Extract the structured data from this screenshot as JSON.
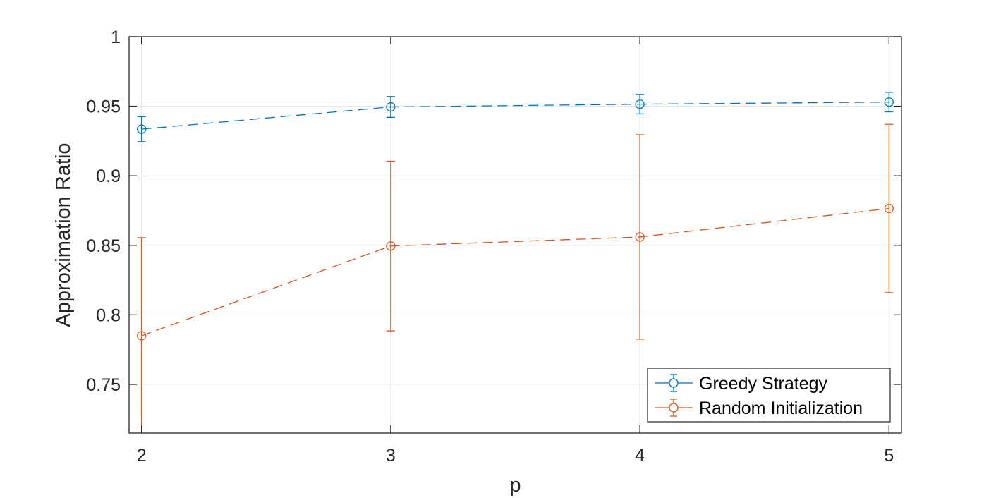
{
  "chart_data": {
    "type": "line",
    "title": "",
    "xlabel": "p",
    "ylabel": "Approximation Ratio",
    "x": [
      2,
      3,
      4,
      5
    ],
    "xlim": [
      1.95,
      5.05
    ],
    "ylim": [
      0.715,
      1.0
    ],
    "xticks": [
      "2",
      "3",
      "4",
      "5"
    ],
    "yticks": [
      "0.75",
      "0.8",
      "0.85",
      "0.9",
      "0.95",
      "1"
    ],
    "grid": true,
    "legend_position": "bottom-right",
    "series": [
      {
        "name": "Greedy Strategy",
        "color": "#0072BD",
        "line_style": "dashed",
        "marker": "circle",
        "values": [
          0.9335,
          0.9495,
          0.9515,
          0.953
        ],
        "error": [
          0.009,
          0.0075,
          0.007,
          0.007
        ]
      },
      {
        "name": "Random Initialization",
        "color": "#D95319",
        "line_style": "dashed",
        "marker": "circle",
        "values": [
          0.785,
          0.8495,
          0.856,
          0.8765
        ],
        "error": [
          0.0705,
          0.061,
          0.0735,
          0.0605
        ]
      }
    ]
  }
}
